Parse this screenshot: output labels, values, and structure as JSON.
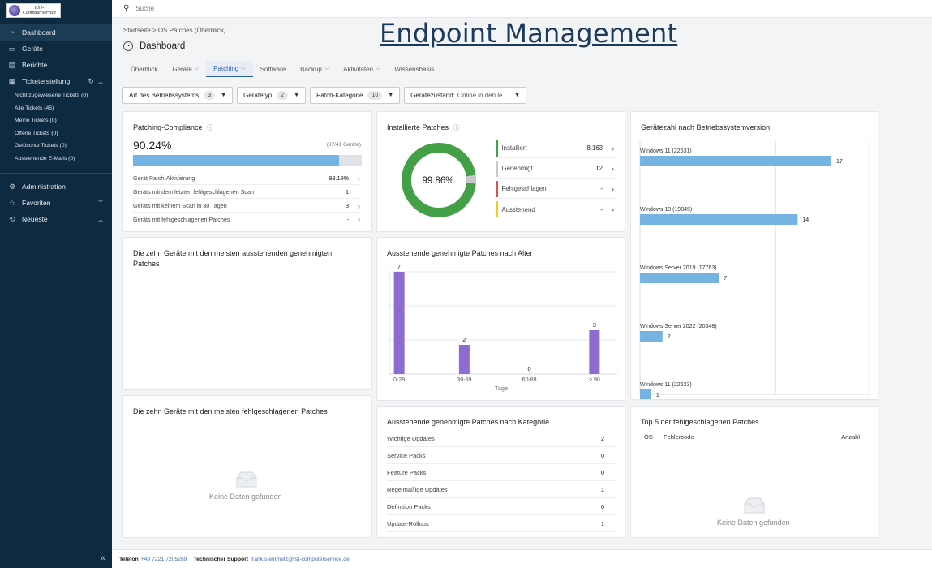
{
  "logo": {
    "line1": "FST-",
    "line2": "Computerservice"
  },
  "sidebar": {
    "items": [
      {
        "label": "Dashboard",
        "icon": "gauge-icon"
      },
      {
        "label": "Geräte",
        "icon": "monitor-icon"
      },
      {
        "label": "Berichte",
        "icon": "report-icon"
      },
      {
        "label": "Ticketerstellung",
        "icon": "ticket-icon"
      }
    ],
    "ticket_sub": [
      "Nicht zugewiesene Tickets (0)",
      "Alle Tickets (45)",
      "Meine Tickets (0)",
      "Offene Tickets (0)",
      "Gelöschte Tickets (0)",
      "Ausstehende E-Mails (0)"
    ],
    "lower": [
      {
        "label": "Administration",
        "icon": "gear-icon"
      },
      {
        "label": "Favoriten",
        "icon": "star-icon"
      },
      {
        "label": "Neueste",
        "icon": "history-icon"
      }
    ]
  },
  "search": {
    "placeholder": "Suche"
  },
  "overlay_title": "Endpoint Management",
  "breadcrumb": "Startseite > OS Patches (Überblick)",
  "page_title": "Dashboard",
  "tabs": [
    {
      "label": "Überblick",
      "dropdown": false
    },
    {
      "label": "Geräte",
      "dropdown": true
    },
    {
      "label": "Patching",
      "dropdown": true
    },
    {
      "label": "Software",
      "dropdown": false
    },
    {
      "label": "Backup",
      "dropdown": true
    },
    {
      "label": "Aktivitäten",
      "dropdown": true
    },
    {
      "label": "Wissensbasis",
      "dropdown": false
    }
  ],
  "filters": [
    {
      "label": "Art des Betriebssystems",
      "count": "3"
    },
    {
      "label": "Gerätetyp",
      "count": "2"
    },
    {
      "label": "Patch-Kategorie",
      "count": "10"
    },
    {
      "label": "Gerätezustand:",
      "value": "Online in den le..."
    }
  ],
  "compliance": {
    "title": "Patching-Compliance",
    "percent": "90.24%",
    "fraction": 0.9024,
    "devices": "(37/41 Geräte)",
    "rows": [
      {
        "label": "Gerät Patch-Aktivierung",
        "value": "93.19%",
        "arrow": true
      },
      {
        "label": "Geräts mit dem letzten fehlgeschlagenen Scan",
        "value": "1",
        "arrow": false
      },
      {
        "label": "Geräts mit keinem Scan in 30 Tagen",
        "value": "3",
        "arrow": true
      },
      {
        "label": "Geräts mit fehlgeschlagenen Patches",
        "value": "-",
        "arrow": true
      }
    ]
  },
  "installed": {
    "title": "Installierte Patches",
    "center": "99.86%",
    "legend": [
      {
        "label": "Installiert",
        "value": "8.163",
        "color": "#43a047"
      },
      {
        "label": "Genehmigt",
        "value": "12",
        "color": "#c9c9c9"
      },
      {
        "label": "Fehlgeschlagen",
        "value": "-",
        "color": "#d9534f"
      },
      {
        "label": "Ausstehend",
        "value": "-",
        "color": "#f2c91c"
      }
    ]
  },
  "os_versions": {
    "title": "Gerätezahl nach Betriebssystemversion"
  },
  "top10_pending": {
    "title": "Die zehn Geräte mit den meisten ausstehenden genehmigten Patches"
  },
  "top10_failed": {
    "title": "Die zehn Geräte mit den meisten fehlgeschlagenen Patches",
    "empty": "Keine Daten gefunden"
  },
  "age": {
    "title": "Ausstehende genehmigte Patches nach Alter"
  },
  "category": {
    "title": "Ausstehende genehmigte Patches nach Kategorie",
    "rows": [
      {
        "label": "Wichtige Updates",
        "value": "2"
      },
      {
        "label": "Service Packs",
        "value": "0"
      },
      {
        "label": "Feature Packs",
        "value": "0"
      },
      {
        "label": "Regelmäßige Updates",
        "value": "1"
      },
      {
        "label": "Definition Packs",
        "value": "0"
      },
      {
        "label": "Update-Rollups",
        "value": "1"
      }
    ]
  },
  "top5": {
    "title": "Top 5 der fehlgeschlagenen Patches",
    "headers": {
      "os": "OS",
      "code": "Fehlercode",
      "count": "Anzahl"
    },
    "empty": "Keine Daten gefunden"
  },
  "footer": {
    "phone_label": "Telefon",
    "phone": "+49 7221 7205289",
    "support_label": "Technischer Support",
    "email": "frank.steinmetz@fst-computerservice.de"
  },
  "chart_data": [
    {
      "type": "bar",
      "orientation": "vertical",
      "title": "Ausstehende genehmigte Patches nach Alter",
      "categories": [
        "0-29",
        "30-59",
        "60-89",
        "> 90"
      ],
      "values": [
        7,
        2,
        0,
        3
      ],
      "xlabel": "Tage",
      "ylim": [
        0,
        7
      ],
      "color": "#8e6ccf"
    },
    {
      "type": "bar",
      "orientation": "horizontal",
      "title": "Gerätezahl nach Betriebssystemversion",
      "categories": [
        "Windows 11 (22631)",
        "Windows 10 (19045)",
        "Windows Server 2019 (17763)",
        "Windows Server 2022 (20348)",
        "Windows 11 (22623)"
      ],
      "values": [
        17,
        14,
        7,
        2,
        1
      ],
      "xlim": [
        0,
        17
      ],
      "color": "#75b3e3"
    }
  ]
}
